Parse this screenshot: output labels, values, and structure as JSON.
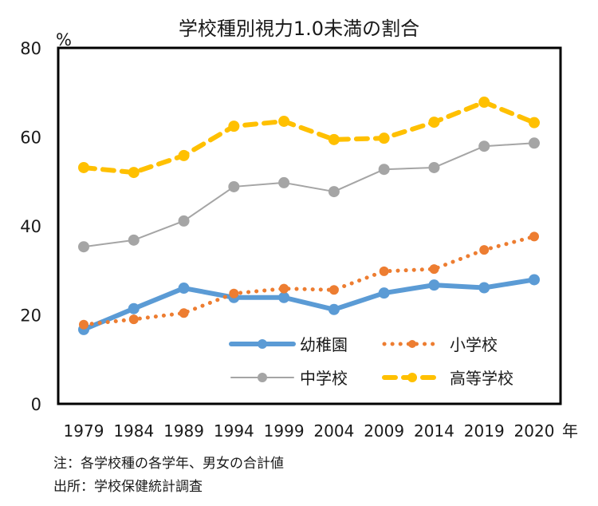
{
  "chart_data": {
    "type": "line",
    "title": "学校種別視力1.0未満の割合",
    "xlabel": "年",
    "ylabel": "%",
    "ylim": [
      0,
      80
    ],
    "yticks": [
      "0",
      "20",
      "40",
      "60",
      "80"
    ],
    "categories": [
      "1979",
      "1984",
      "1989",
      "1994",
      "1999",
      "2004",
      "2009",
      "2014",
      "2019",
      "2020"
    ],
    "grid": false,
    "legend_position": "bottom-right",
    "series": [
      {
        "name": "幼稚園",
        "color": "#5B9BD5",
        "style": "solid-thick",
        "values": [
          16.7,
          21.4,
          26.0,
          23.9,
          23.9,
          21.2,
          24.9,
          26.7,
          26.1,
          27.9
        ]
      },
      {
        "name": "小学校",
        "color": "#ED7D31",
        "style": "dotted",
        "values": [
          17.8,
          19.0,
          20.4,
          24.8,
          25.9,
          25.6,
          29.8,
          30.3,
          34.6,
          37.6
        ]
      },
      {
        "name": "中学校",
        "color": "#A5A5A5",
        "style": "solid-thin",
        "values": [
          35.3,
          36.8,
          41.1,
          48.8,
          49.7,
          47.7,
          52.7,
          53.1,
          57.9,
          58.6
        ]
      },
      {
        "name": "高等学校",
        "color": "#FFC000",
        "style": "dashed",
        "values": [
          53.1,
          52.0,
          55.8,
          62.4,
          63.5,
          59.4,
          59.7,
          63.3,
          67.8,
          63.2
        ]
      }
    ]
  },
  "notes": {
    "note": "注：各学校種の各学年、男女の合計値",
    "source": "出所：学校保健統計調査"
  }
}
